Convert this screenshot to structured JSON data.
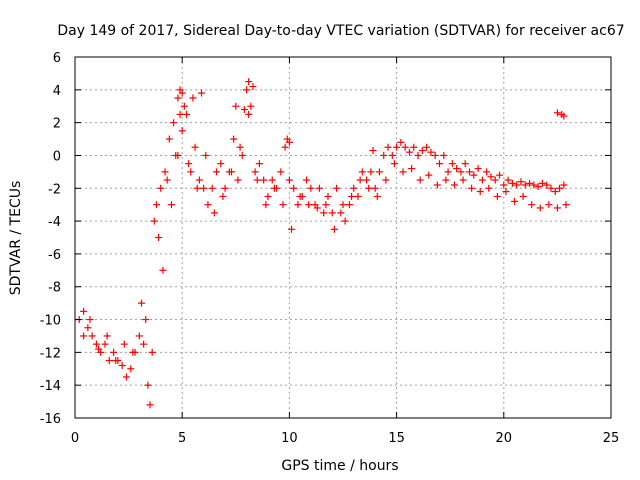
{
  "chart_data": {
    "type": "scatter",
    "title": "Day 149 of 2017, Sidereal Day-to-day VTEC variation (SDTVAR) for receiver ac67",
    "xlabel": "GPS time / hours",
    "ylabel": "SDTVAR / TECUs",
    "xlim": [
      0,
      25
    ],
    "ylim": [
      -16,
      6
    ],
    "xticks": [
      0,
      5,
      10,
      15,
      20,
      25
    ],
    "yticks": [
      -16,
      -14,
      -12,
      -10,
      -8,
      -6,
      -4,
      -2,
      0,
      2,
      4,
      6
    ],
    "grid": true,
    "marker": "+",
    "color": "#ff0000",
    "series": [
      {
        "name": "SDTVAR",
        "x": [
          0.2,
          0.4,
          0.6,
          0.8,
          1.0,
          1.2,
          1.4,
          1.6,
          1.8,
          2.0,
          2.2,
          2.4,
          2.6,
          2.8,
          3.0,
          3.2,
          3.4,
          3.5,
          3.6,
          3.8,
          4.0,
          4.2,
          4.4,
          4.6,
          4.8,
          5.0,
          5.2,
          5.4,
          5.6,
          5.8,
          6.0,
          6.2,
          6.4,
          6.6,
          6.8,
          7.0,
          7.2,
          7.4,
          7.6,
          7.8,
          8.0,
          8.2,
          8.4,
          8.6,
          8.8,
          9.0,
          9.2,
          9.4,
          9.6,
          9.8,
          10.0,
          10.2,
          10.4,
          10.6,
          10.8,
          11.0,
          11.2,
          11.4,
          11.6,
          11.8,
          12.0,
          12.2,
          12.4,
          12.6,
          12.8,
          13.0,
          13.2,
          13.4,
          13.6,
          13.8,
          14.0,
          14.2,
          14.4,
          14.6,
          14.8,
          15.0,
          15.2,
          15.4,
          15.6,
          15.8,
          16.0,
          16.2,
          16.4,
          16.6,
          16.8,
          17.0,
          17.2,
          17.4,
          17.6,
          17.8,
          18.0,
          18.2,
          18.4,
          18.6,
          18.8,
          19.0,
          19.2,
          19.4,
          19.6,
          19.8,
          20.0,
          20.2,
          20.4,
          20.6,
          20.8,
          21.0,
          21.2,
          21.4,
          21.6,
          21.8,
          22.0,
          22.2,
          22.4,
          22.6,
          22.8,
          0.4,
          0.7,
          1.1,
          1.5,
          1.9,
          2.3,
          2.7,
          3.1,
          3.3,
          3.7,
          3.9,
          4.1,
          4.3,
          4.5,
          4.7,
          4.9,
          5.1,
          5.3,
          5.7,
          6.1,
          6.5,
          6.9,
          7.3,
          7.7,
          8.1,
          8.5,
          8.9,
          9.3,
          9.7,
          10.1,
          10.5,
          10.9,
          11.3,
          11.7,
          12.1,
          12.5,
          12.9,
          13.3,
          13.7,
          14.1,
          14.5,
          14.9,
          15.3,
          15.7,
          16.1,
          16.5,
          16.9,
          17.3,
          17.7,
          18.1,
          18.5,
          18.9,
          19.3,
          19.7,
          20.1,
          20.5,
          20.9,
          21.3,
          21.7,
          22.1,
          22.5,
          22.9,
          4.8,
          4.9,
          5.0,
          5.5,
          5.9,
          7.5,
          7.9,
          8.1,
          8.3,
          9.9,
          10.0,
          13.9,
          22.5,
          22.7,
          22.8
        ],
        "y": [
          -10.0,
          -9.5,
          -10.5,
          -11.0,
          -11.5,
          -12.0,
          -11.5,
          -12.5,
          -12.0,
          -12.5,
          -12.8,
          -13.5,
          -13.0,
          -12.0,
          -11.0,
          -11.5,
          -14.0,
          -15.2,
          -12.0,
          -3.0,
          -2.0,
          -1.0,
          1.0,
          2.0,
          0.0,
          1.5,
          2.5,
          -1.0,
          0.5,
          -1.5,
          -2.0,
          -3.0,
          -2.0,
          -1.0,
          -0.5,
          -2.0,
          -1.0,
          1.0,
          -1.5,
          0.0,
          4.0,
          3.0,
          -1.0,
          -0.5,
          -1.5,
          -2.5,
          -1.5,
          -2.0,
          -1.0,
          0.5,
          -1.5,
          -2.0,
          -3.0,
          -2.5,
          -1.5,
          -2.0,
          -3.0,
          -2.0,
          -3.5,
          -2.5,
          -3.5,
          -2.0,
          -3.5,
          -4.0,
          -3.0,
          -2.0,
          -2.5,
          -1.0,
          -1.5,
          -1.0,
          -2.0,
          -1.0,
          0.0,
          0.5,
          0.0,
          0.5,
          0.8,
          0.5,
          0.2,
          0.5,
          0.0,
          0.3,
          0.5,
          0.2,
          0.0,
          -0.5,
          0.0,
          -1.0,
          -0.5,
          -0.8,
          -1.0,
          -0.5,
          -1.0,
          -1.2,
          -0.8,
          -1.5,
          -1.0,
          -1.3,
          -1.5,
          -1.2,
          -1.8,
          -1.5,
          -1.7,
          -1.8,
          -1.6,
          -1.8,
          -1.7,
          -1.8,
          -1.9,
          -1.7,
          -1.8,
          -2.0,
          -2.2,
          -2.0,
          -1.8,
          -11.0,
          -10.0,
          -11.8,
          -11.0,
          -12.5,
          -11.5,
          -12.0,
          -9.0,
          -10.0,
          -4.0,
          -5.0,
          -7.0,
          -1.5,
          -3.0,
          0.0,
          2.5,
          3.0,
          -0.5,
          -2.0,
          0.0,
          -3.5,
          -2.5,
          -1.0,
          0.5,
          2.5,
          -1.5,
          -3.0,
          -2.0,
          -3.0,
          -4.5,
          -2.5,
          -3.0,
          -3.2,
          -3.0,
          -4.5,
          -3.0,
          -2.5,
          -1.5,
          -2.0,
          -2.5,
          -1.5,
          -0.5,
          -1.0,
          -0.8,
          -1.5,
          -1.2,
          -1.8,
          -1.5,
          -1.8,
          -1.5,
          -2.0,
          -2.2,
          -2.0,
          -2.5,
          -2.2,
          -2.8,
          -2.5,
          -3.0,
          -3.2,
          -3.0,
          -3.2,
          -3.0,
          3.5,
          4.0,
          3.8,
          3.5,
          3.8,
          3.0,
          2.8,
          4.5,
          4.2,
          1.0,
          0.8,
          0.3,
          2.6,
          2.5,
          2.4
        ]
      }
    ]
  }
}
